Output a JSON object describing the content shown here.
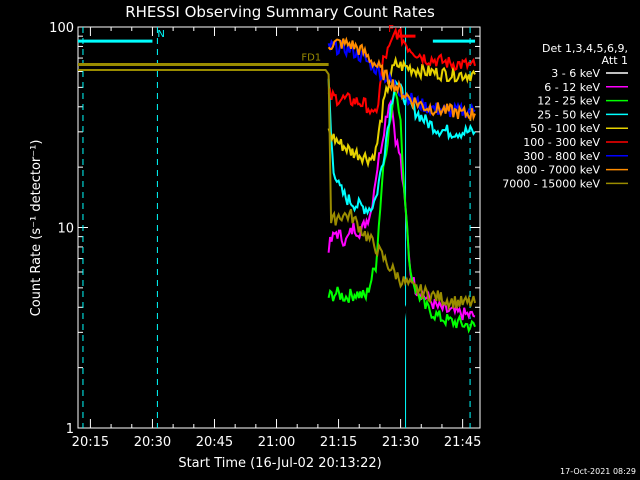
{
  "chart_data": {
    "type": "line",
    "title": "RHESSI Observing Summary Count Rates",
    "xlabel": "Start Time (16-Jul-02 20:13:22)",
    "ylabel": "Count Rate (s⁻¹ detector⁻¹)",
    "x_range_minutes": [
      20.2,
      21.82
    ],
    "y_scale": "log",
    "ylim": [
      1,
      100
    ],
    "x_ticks": [
      {
        "t": 20.25,
        "label": "20:15"
      },
      {
        "t": 20.5,
        "label": "20:30"
      },
      {
        "t": 20.75,
        "label": "20:45"
      },
      {
        "t": 21.0,
        "label": "21:00"
      },
      {
        "t": 21.25,
        "label": "21:15"
      },
      {
        "t": 21.5,
        "label": "21:30"
      },
      {
        "t": 21.75,
        "label": "21:45"
      }
    ],
    "y_ticks": [
      {
        "v": 1,
        "label": "1"
      },
      {
        "v": 10,
        "label": "10"
      },
      {
        "v": 100,
        "label": "100"
      }
    ],
    "legend": {
      "header": [
        "Det 1,3,4,5,6,9,",
        "Att 1"
      ],
      "placement": "right",
      "entries": [
        {
          "label": "3 - 6 keV",
          "color": "#ffffff"
        },
        {
          "label": "6 - 12 keV",
          "color": "#ff00ff"
        },
        {
          "label": "12 - 25 keV",
          "color": "#00ff00"
        },
        {
          "label": "25 - 50 keV",
          "color": "#00ffff"
        },
        {
          "label": "50 - 100 keV",
          "color": "#e6d200"
        },
        {
          "label": "100 - 300 keV",
          "color": "#ff0000"
        },
        {
          "label": "300 - 800 keV",
          "color": "#0000ff"
        },
        {
          "label": "800 - 7000 keV",
          "color": "#ff8c00"
        },
        {
          "label": "7000 - 15000 keV",
          "color": "#9a8c00"
        }
      ]
    },
    "series": [
      {
        "name": "3 - 6 keV",
        "color": "#000000",
        "points": [
          [
            21.21,
            2.6
          ],
          [
            21.25,
            2.7
          ],
          [
            21.3,
            2.6
          ],
          [
            21.35,
            2.8
          ],
          [
            21.4,
            2.6
          ],
          [
            21.45,
            3.0
          ],
          [
            21.48,
            3.2
          ],
          [
            21.5,
            2.9
          ],
          [
            21.52,
            3.8
          ],
          [
            21.54,
            4.5
          ],
          [
            21.56,
            5.5
          ],
          [
            21.58,
            4.5
          ],
          [
            21.6,
            4.0
          ],
          [
            21.65,
            3.9
          ],
          [
            21.7,
            3.9
          ],
          [
            21.75,
            3.9
          ],
          [
            21.8,
            3.8
          ]
        ]
      },
      {
        "name": "6 - 12 keV",
        "color": "#ff00ff",
        "points": [
          [
            21.21,
            8.0
          ],
          [
            21.24,
            9.5
          ],
          [
            21.28,
            8.5
          ],
          [
            21.31,
            10.0
          ],
          [
            21.34,
            9.5
          ],
          [
            21.38,
            12.0
          ],
          [
            21.4,
            18.0
          ],
          [
            21.42,
            25.0
          ],
          [
            21.44,
            35.0
          ],
          [
            21.46,
            45.0
          ],
          [
            21.48,
            28.0
          ],
          [
            21.5,
            22.0
          ],
          [
            21.52,
            12.0
          ],
          [
            21.54,
            6.0
          ],
          [
            21.56,
            5.0
          ],
          [
            21.6,
            4.5
          ],
          [
            21.65,
            4.0
          ],
          [
            21.7,
            3.8
          ],
          [
            21.75,
            3.7
          ],
          [
            21.8,
            3.6
          ]
        ]
      },
      {
        "name": "12 - 25 keV",
        "color": "#00ff00",
        "points": [
          [
            21.21,
            4.5
          ],
          [
            21.24,
            4.7
          ],
          [
            21.28,
            4.5
          ],
          [
            21.32,
            4.7
          ],
          [
            21.36,
            4.5
          ],
          [
            21.4,
            6.5
          ],
          [
            21.43,
            20.0
          ],
          [
            21.46,
            35.0
          ],
          [
            21.48,
            50.0
          ],
          [
            21.5,
            35.0
          ],
          [
            21.52,
            12.0
          ],
          [
            21.54,
            6.0
          ],
          [
            21.56,
            5.0
          ],
          [
            21.6,
            4.0
          ],
          [
            21.65,
            3.6
          ],
          [
            21.7,
            3.4
          ],
          [
            21.75,
            3.3
          ],
          [
            21.8,
            3.2
          ]
        ]
      },
      {
        "name": "25 - 50 keV",
        "color": "#00ffff",
        "points": [
          [
            21.21,
            55.0
          ],
          [
            21.215,
            40.0
          ],
          [
            21.22,
            28.0
          ],
          [
            21.23,
            20.0
          ],
          [
            21.25,
            16.0
          ],
          [
            21.28,
            14.0
          ],
          [
            21.32,
            13.0
          ],
          [
            21.36,
            12.5
          ],
          [
            21.38,
            12.5
          ],
          [
            21.4,
            14.0
          ],
          [
            21.43,
            22.0
          ],
          [
            21.46,
            40.0
          ],
          [
            21.48,
            55.0
          ],
          [
            21.5,
            48.0
          ],
          [
            21.53,
            42.0
          ],
          [
            21.56,
            38.0
          ],
          [
            21.6,
            34.0
          ],
          [
            21.65,
            31.0
          ],
          [
            21.7,
            30.0
          ],
          [
            21.75,
            30.0
          ],
          [
            21.8,
            30.0
          ]
        ]
      },
      {
        "name": "50 - 100 keV",
        "color": "#e6d200",
        "points": [
          [
            21.21,
            30.0
          ],
          [
            21.23,
            28.0
          ],
          [
            21.26,
            26.0
          ],
          [
            21.3,
            24.0
          ],
          [
            21.34,
            23.0
          ],
          [
            21.38,
            22.0
          ],
          [
            21.4,
            24.0
          ],
          [
            21.43,
            40.0
          ],
          [
            21.46,
            58.0
          ],
          [
            21.48,
            65.0
          ],
          [
            21.5,
            64.0
          ],
          [
            21.55,
            62.0
          ],
          [
            21.6,
            60.0
          ],
          [
            21.65,
            59.0
          ],
          [
            21.7,
            58.0
          ],
          [
            21.75,
            58.0
          ],
          [
            21.8,
            58.0
          ]
        ]
      },
      {
        "name": "100 - 300 keV",
        "color": "#ff0000",
        "points": [
          [
            21.21,
            45.0
          ],
          [
            21.25,
            44.0
          ],
          [
            21.3,
            43.0
          ],
          [
            21.34,
            42.0
          ],
          [
            21.37,
            40.0
          ],
          [
            21.39,
            35.0
          ],
          [
            21.41,
            42.0
          ],
          [
            21.43,
            68.0
          ],
          [
            21.46,
            80.0
          ],
          [
            21.48,
            95.0
          ],
          [
            21.5,
            90.0
          ],
          [
            21.53,
            80.0
          ],
          [
            21.56,
            75.0
          ],
          [
            21.6,
            70.0
          ],
          [
            21.65,
            68.0
          ],
          [
            21.7,
            66.0
          ],
          [
            21.75,
            65.0
          ],
          [
            21.8,
            64.0
          ]
        ]
      },
      {
        "name": "300 - 800 keV",
        "color": "#0000ff",
        "points": [
          [
            21.21,
            80.0
          ],
          [
            21.25,
            79.0
          ],
          [
            21.3,
            77.0
          ],
          [
            21.35,
            70.0
          ],
          [
            21.4,
            62.0
          ],
          [
            21.45,
            55.0
          ],
          [
            21.5,
            48.0
          ],
          [
            21.55,
            43.0
          ],
          [
            21.6,
            40.0
          ],
          [
            21.65,
            39.0
          ],
          [
            21.7,
            38.0
          ],
          [
            21.75,
            38.0
          ],
          [
            21.8,
            38.0
          ]
        ]
      },
      {
        "name": "800 - 7000 keV",
        "color": "#ff8c00",
        "points": [
          [
            21.21,
            82.0
          ],
          [
            21.25,
            83.0
          ],
          [
            21.3,
            82.0
          ],
          [
            21.35,
            75.0
          ],
          [
            21.4,
            65.0
          ],
          [
            21.45,
            55.0
          ],
          [
            21.5,
            48.0
          ],
          [
            21.55,
            43.0
          ],
          [
            21.6,
            40.0
          ],
          [
            21.65,
            39.0
          ],
          [
            21.7,
            38.0
          ],
          [
            21.75,
            37.0
          ],
          [
            21.8,
            37.0
          ]
        ]
      },
      {
        "name": "7000 - 15000 keV",
        "color": "#9a8c00",
        "points": [
          [
            20.2,
            61.0
          ],
          [
            21.21,
            61.0
          ],
          [
            21.22,
            10.5
          ],
          [
            21.25,
            11.5
          ],
          [
            21.3,
            11.5
          ],
          [
            21.35,
            9.5
          ],
          [
            21.4,
            8.0
          ],
          [
            21.45,
            6.5
          ],
          [
            21.5,
            5.5
          ],
          [
            21.55,
            5.0
          ],
          [
            21.6,
            4.7
          ],
          [
            21.65,
            4.5
          ],
          [
            21.7,
            4.3
          ],
          [
            21.75,
            4.2
          ],
          [
            21.8,
            4.2
          ]
        ]
      }
    ],
    "state_bars": [
      {
        "label": "N",
        "color": "#00ffff",
        "y": 85,
        "segments": [
          [
            20.2,
            20.5
          ],
          [
            21.63,
            21.8
          ]
        ],
        "label_at": 20.52
      },
      {
        "label": "FD1",
        "color": "#9a8c00",
        "y": 65,
        "segments": [
          [
            20.2,
            21.21
          ]
        ],
        "label_at": 21.1
      },
      {
        "label": "F",
        "color": "#ff0000",
        "y": 90,
        "segments": [
          [
            21.48,
            21.56
          ]
        ],
        "label_at": 21.45
      }
    ],
    "vertical_lines": [
      {
        "t": 20.22,
        "color": "#00ffff",
        "style": "dashed"
      },
      {
        "t": 20.52,
        "color": "#00ffff",
        "style": "dashed"
      },
      {
        "t": 21.52,
        "color": "#00ffff",
        "style": "solid"
      },
      {
        "t": 21.78,
        "color": "#00ffff",
        "style": "dashed"
      }
    ],
    "timestamp": "17-Oct-2021 08:29"
  }
}
